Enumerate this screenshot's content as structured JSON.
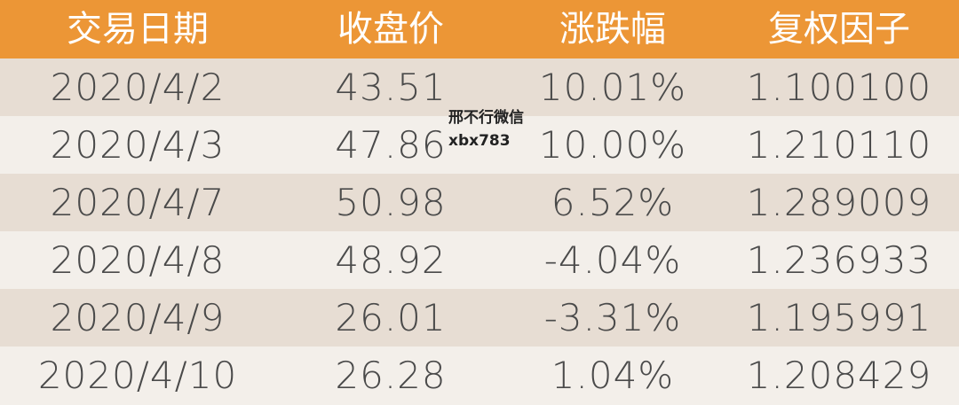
{
  "table": {
    "headers": [
      "交易日期",
      "收盘价",
      "涨跌幅",
      "复权因子"
    ],
    "rows": [
      [
        "2020/4/2",
        "43.51",
        "10.01%",
        "1.100100"
      ],
      [
        "2020/4/3",
        "47.86",
        "10.00%",
        "1.210110"
      ],
      [
        "2020/4/7",
        "50.98",
        "6.52%",
        "1.289009"
      ],
      [
        "2020/4/8",
        "48.92",
        "-4.04%",
        "1.236933"
      ],
      [
        "2020/4/9",
        "26.01",
        "-3.31%",
        "1.195991"
      ],
      [
        "2020/4/10",
        "26.28",
        "1.04%",
        "1.208429"
      ]
    ]
  },
  "watermark": {
    "line1": "邢不行微信",
    "line2": "xbx783"
  },
  "colors": {
    "header_bg": "#ec9636",
    "header_text": "#ffffff",
    "row_odd": "#e7ddd3",
    "row_even": "#f3efea",
    "cell_text": "#4a4a4a"
  }
}
